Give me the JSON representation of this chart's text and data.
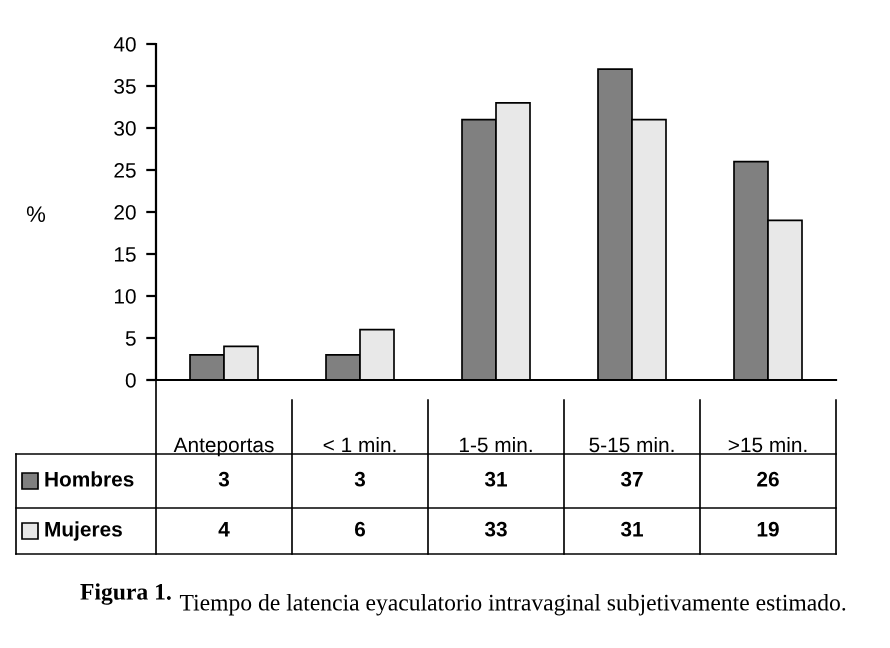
{
  "chart_data": {
    "type": "bar",
    "ylabel": "%",
    "categories": [
      "Anteportas",
      "< 1 min.",
      "1-5 min.",
      "5-15 min.",
      ">15 min."
    ],
    "series": [
      {
        "name": "Hombres",
        "color": "#808080",
        "values": [
          3,
          3,
          31,
          37,
          26
        ]
      },
      {
        "name": "Mujeres",
        "color": "#e8e8e8",
        "values": [
          4,
          6,
          33,
          31,
          19
        ]
      }
    ],
    "ylim": [
      0,
      40
    ],
    "yticks": [
      0,
      5,
      10,
      15,
      20,
      25,
      30,
      35,
      40
    ],
    "grid": false,
    "legend": "bottom",
    "data_labels": true,
    "annotations": [
      "Figura 1.",
      "Tiempo de latencia eyaculatorio intravaginal subjetivamente estimado."
    ]
  }
}
